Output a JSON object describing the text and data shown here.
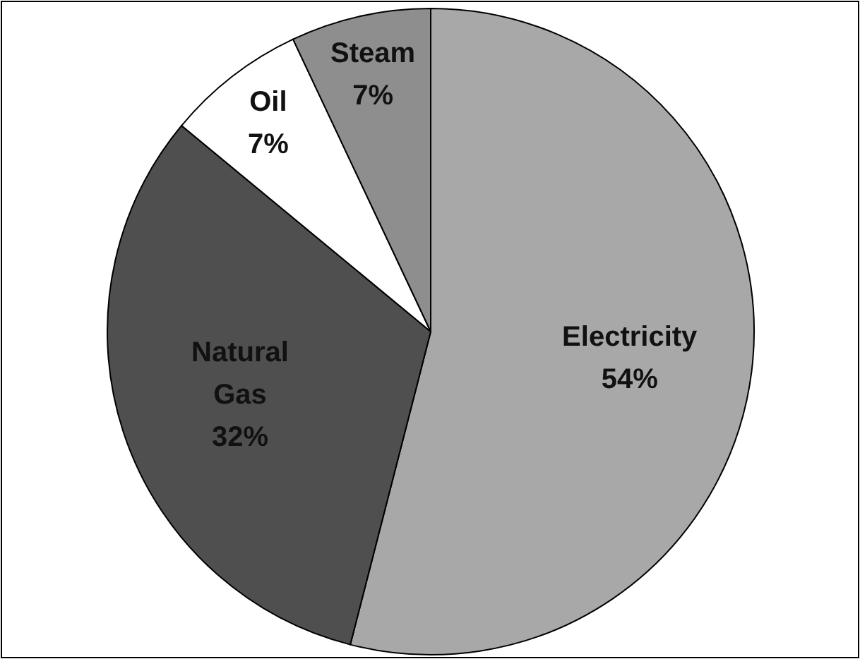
{
  "chart_data": {
    "type": "pie",
    "categories": [
      "Electricity",
      "Natural Gas",
      "Oil",
      "Steam"
    ],
    "values": [
      54,
      32,
      7,
      7
    ],
    "colors": [
      "#a8a8a8",
      "#4f4f4f",
      "#ffffff",
      "#8e8e8e"
    ],
    "value_labels": [
      "54%",
      "32%",
      "7%",
      "7%"
    ]
  }
}
